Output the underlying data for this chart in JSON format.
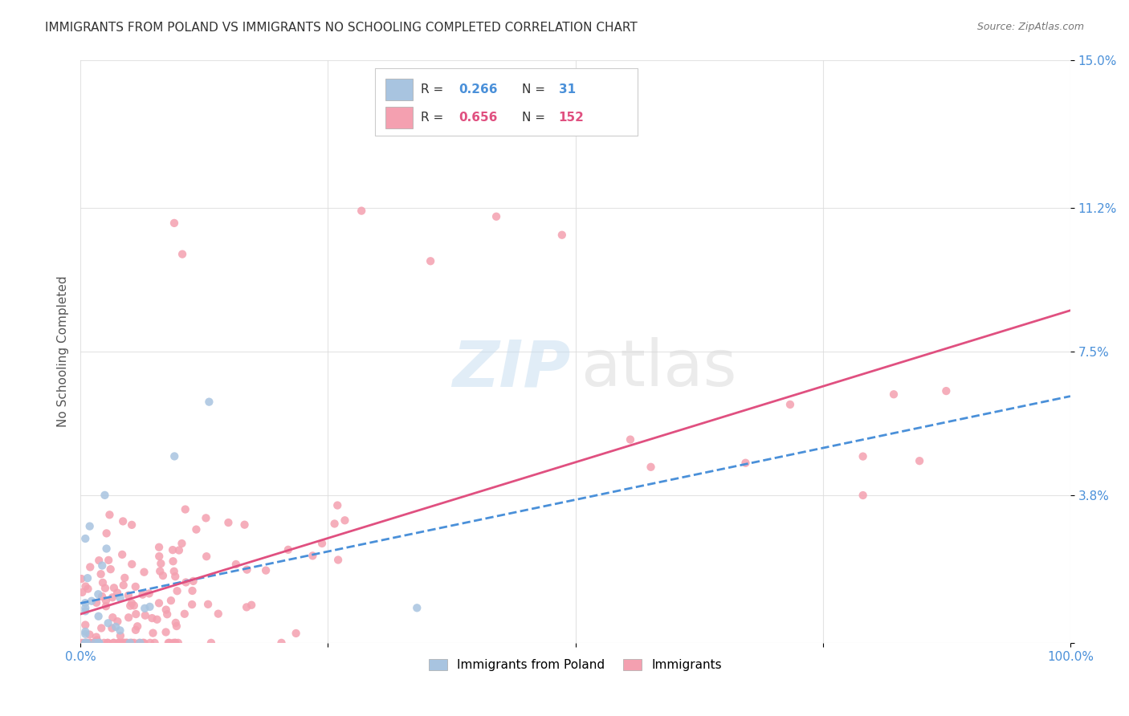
{
  "title": "IMMIGRANTS FROM POLAND VS IMMIGRANTS NO SCHOOLING COMPLETED CORRELATION CHART",
  "source": "Source: ZipAtlas.com",
  "ylabel": "No Schooling Completed",
  "xlim": [
    0,
    1.0
  ],
  "ylim": [
    0,
    0.15
  ],
  "legend_labels": [
    "Immigrants from Poland",
    "Immigrants"
  ],
  "series1_color": "#a8c4e0",
  "series2_color": "#f4a0b0",
  "trend1_color": "#4a90d9",
  "trend2_color": "#e05080",
  "R1": 0.266,
  "N1": 31,
  "R2": 0.656,
  "N2": 152,
  "background_color": "#ffffff",
  "grid_color": "#dddddd",
  "ytick_color": "#4a90d9"
}
